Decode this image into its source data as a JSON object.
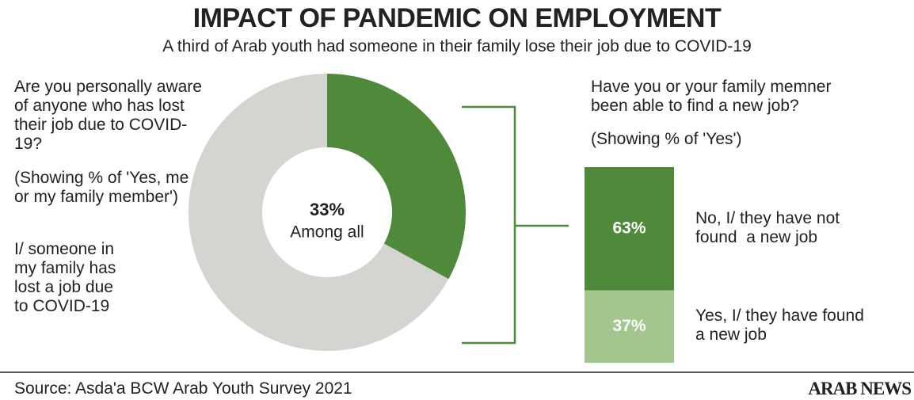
{
  "title": "IMPACT OF PANDEMIC ON EMPLOYMENT",
  "subtitle": "A third of Arab youth had someone in their family lose their job due to COVID-19",
  "chart_data": [
    {
      "type": "donut",
      "question": "Are you personally aware of anyone who has lost their job due to COVID-19?",
      "note": "(Showing % of 'Yes, me or my family member')",
      "answer": "I/ someone in my family has lost a job due to COVID-19",
      "center_text": "Among all",
      "series": [
        {
          "values": [
            33,
            67
          ],
          "value_labels": [
            "33%",
            null
          ],
          "colors": [
            "#4f8a3a",
            "#d4d4d1"
          ]
        }
      ]
    },
    {
      "type": "stacked-bar",
      "question": "Have you or your family memner been able to find a new job?",
      "note": "(Showing % of 'Yes')",
      "categories": [
        "No, I/ they have not found  a new job",
        "Yes, I/ they have found  a new job"
      ],
      "values": [
        63,
        37
      ],
      "value_labels": [
        "63%",
        "37%"
      ],
      "colors": [
        "#4f8a3a",
        "#a3c58e"
      ]
    }
  ],
  "source": "Source: Asda'a BCW Arab Youth Survey 2021",
  "logo": "ARAB NEWS"
}
